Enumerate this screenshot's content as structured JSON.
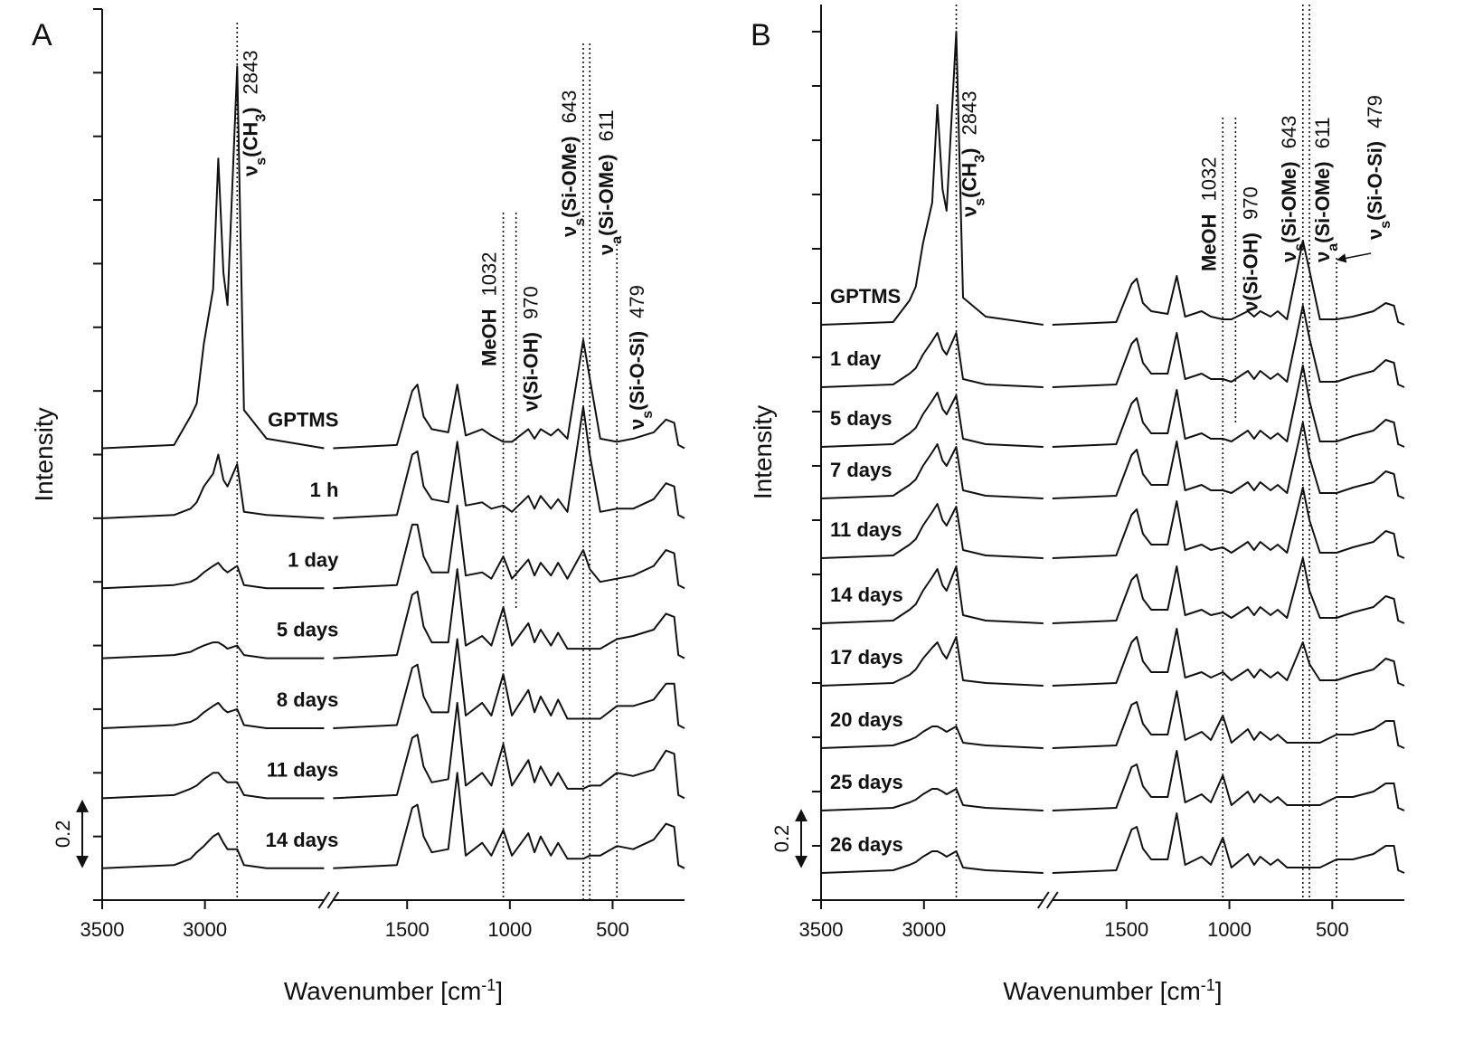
{
  "chart_data": [
    {
      "type": "line",
      "panel_label": "A",
      "ylabel": "Intensity",
      "xlabel": [
        "Wavenumber [cm",
        "-1",
        "]"
      ],
      "color": "#111111",
      "xlim": [
        3500,
        150
      ],
      "xbreak": [
        2420,
        1860
      ],
      "ylim": [
        0,
        2.8
      ],
      "yticks": [
        0,
        0.2,
        0.4,
        0.6,
        0.8,
        1,
        1.2,
        1.4,
        1.6,
        1.8,
        2,
        2.2,
        2.4,
        2.6,
        2.8
      ],
      "ytick_labels": false,
      "xticks": [
        3500,
        3000,
        1500,
        1000,
        500
      ],
      "scale_bar": 0.2,
      "x": [
        3500,
        3150,
        3070,
        3040,
        3005,
        2960,
        2935,
        2910,
        2890,
        2843,
        2810,
        2700,
        2420,
        2100,
        1860,
        1550,
        1475,
        1450,
        1420,
        1380,
        1300,
        1256,
        1215,
        1135,
        1090,
        1032,
        990,
        910,
        880,
        850,
        800,
        765,
        720,
        643,
        611,
        560,
        479,
        400,
        300,
        240,
        200,
        180,
        150
      ],
      "series": [
        {
          "name": "GPTMS",
          "values": [
            1.42,
            1.43,
            1.52,
            1.56,
            1.75,
            1.92,
            2.33,
            1.97,
            1.87,
            2.62,
            1.54,
            1.45,
            1.42,
            null,
            1.42,
            1.43,
            1.6,
            1.62,
            1.52,
            1.48,
            1.47,
            1.62,
            1.46,
            1.48,
            1.46,
            1.44,
            1.44,
            1.48,
            1.45,
            1.48,
            1.46,
            1.48,
            1.45,
            1.76,
            1.64,
            1.45,
            1.44,
            1.45,
            1.47,
            1.51,
            1.5,
            1.43,
            1.42
          ]
        },
        {
          "name": "1 h",
          "values": [
            1.2,
            1.21,
            1.23,
            1.25,
            1.3,
            1.34,
            1.4,
            1.32,
            1.3,
            1.37,
            1.22,
            1.21,
            1.2,
            null,
            1.2,
            1.21,
            1.4,
            1.41,
            1.3,
            1.26,
            1.25,
            1.44,
            1.24,
            1.25,
            1.23,
            1.24,
            1.22,
            1.27,
            1.23,
            1.27,
            1.23,
            1.26,
            1.22,
            1.55,
            1.4,
            1.22,
            1.23,
            1.23,
            1.26,
            1.31,
            1.3,
            1.21,
            1.2
          ]
        },
        {
          "name": "1 day",
          "values": [
            0.98,
            0.99,
            1.0,
            1.01,
            1.03,
            1.05,
            1.06,
            1.04,
            1.03,
            1.05,
            0.99,
            0.98,
            0.98,
            null,
            0.98,
            0.99,
            1.18,
            1.18,
            1.08,
            1.03,
            1.03,
            1.24,
            1.02,
            1.03,
            1.01,
            1.08,
            1.01,
            1.07,
            1.02,
            1.06,
            1.02,
            1.06,
            1.01,
            1.1,
            1.04,
            1.0,
            1.01,
            1.02,
            1.05,
            1.1,
            1.09,
            0.99,
            0.98
          ]
        },
        {
          "name": "5 days",
          "values": [
            0.76,
            0.77,
            0.78,
            0.79,
            0.8,
            0.81,
            0.81,
            0.8,
            0.79,
            0.8,
            0.77,
            0.76,
            0.76,
            null,
            0.76,
            0.77,
            0.96,
            0.97,
            0.86,
            0.81,
            0.81,
            1.04,
            0.8,
            0.83,
            0.8,
            0.92,
            0.8,
            0.87,
            0.81,
            0.85,
            0.8,
            0.84,
            0.79,
            0.79,
            0.79,
            0.79,
            0.82,
            0.83,
            0.85,
            0.9,
            0.89,
            0.77,
            0.76
          ]
        },
        {
          "name": "8 days",
          "values": [
            0.54,
            0.55,
            0.56,
            0.57,
            0.59,
            0.61,
            0.62,
            0.6,
            0.59,
            0.6,
            0.55,
            0.54,
            0.54,
            null,
            0.54,
            0.55,
            0.73,
            0.74,
            0.64,
            0.59,
            0.59,
            0.82,
            0.58,
            0.62,
            0.58,
            0.71,
            0.58,
            0.66,
            0.59,
            0.64,
            0.58,
            0.63,
            0.57,
            0.57,
            0.57,
            0.57,
            0.61,
            0.61,
            0.63,
            0.68,
            0.68,
            0.55,
            0.54
          ]
        },
        {
          "name": "11 days",
          "values": [
            0.32,
            0.33,
            0.35,
            0.36,
            0.38,
            0.4,
            0.4,
            0.38,
            0.37,
            0.37,
            0.33,
            0.32,
            0.32,
            null,
            0.32,
            0.33,
            0.51,
            0.52,
            0.42,
            0.37,
            0.38,
            0.62,
            0.36,
            0.4,
            0.36,
            0.49,
            0.36,
            0.44,
            0.37,
            0.42,
            0.36,
            0.4,
            0.35,
            0.35,
            0.36,
            0.36,
            0.4,
            0.39,
            0.41,
            0.47,
            0.46,
            0.33,
            0.32
          ]
        },
        {
          "name": "14 days",
          "values": [
            0.1,
            0.11,
            0.13,
            0.15,
            0.17,
            0.2,
            0.21,
            0.18,
            0.16,
            0.16,
            0.11,
            0.1,
            0.1,
            null,
            0.1,
            0.11,
            0.29,
            0.3,
            0.2,
            0.15,
            0.16,
            0.4,
            0.14,
            0.18,
            0.14,
            0.22,
            0.14,
            0.21,
            0.15,
            0.2,
            0.14,
            0.18,
            0.13,
            0.13,
            0.14,
            0.14,
            0.17,
            0.16,
            0.19,
            0.24,
            0.23,
            0.11,
            0.1
          ]
        }
      ],
      "annotations": [
        {
          "x": 2843,
          "label": [
            "ν",
            "s",
            "(CH",
            "3",
            ")"
          ]
        },
        {
          "x": 1032,
          "label": [
            "MeOH"
          ]
        },
        {
          "x": 970,
          "label": [
            "ν(Si-OH)"
          ]
        },
        {
          "x": 643,
          "label": [
            "ν",
            "s",
            "(Si-OMe)"
          ]
        },
        {
          "x": 611,
          "label": [
            "ν",
            "a",
            "(Si-OMe)"
          ]
        },
        {
          "x": 479,
          "label": [
            "ν",
            "s",
            "(Si-O-Si)"
          ]
        }
      ]
    },
    {
      "type": "line",
      "panel_label": "B",
      "ylabel": "Intensity",
      "xlabel": [
        "Wavenumber [cm",
        "-1",
        "]"
      ],
      "color": "#111111",
      "xlim": [
        3500,
        150
      ],
      "xbreak": [
        2420,
        1860
      ],
      "ylim": [
        0,
        3.3
      ],
      "yticks": [
        0,
        0.2,
        0.4,
        0.6,
        0.8,
        1,
        1.2,
        1.4,
        1.6,
        1.8,
        2,
        2.2,
        2.4,
        2.6,
        2.8,
        3,
        3.2
      ],
      "ytick_labels": false,
      "xticks": [
        3500,
        3000,
        1500,
        1000,
        500
      ],
      "scale_bar": 0.2,
      "x": [
        3500,
        3150,
        3070,
        3040,
        3005,
        2960,
        2935,
        2910,
        2890,
        2843,
        2810,
        2700,
        2420,
        2100,
        1860,
        1550,
        1475,
        1450,
        1420,
        1380,
        1300,
        1256,
        1215,
        1135,
        1090,
        1032,
        990,
        910,
        880,
        850,
        800,
        765,
        720,
        643,
        611,
        560,
        479,
        400,
        300,
        240,
        200,
        180,
        150
      ],
      "series": [
        {
          "name": "GPTMS",
          "values": [
            2.12,
            2.13,
            2.21,
            2.26,
            2.42,
            2.57,
            2.93,
            2.62,
            2.54,
            3.2,
            2.22,
            2.15,
            2.12,
            null,
            2.12,
            2.13,
            2.27,
            2.29,
            2.2,
            2.17,
            2.16,
            2.3,
            2.15,
            2.17,
            2.15,
            2.14,
            2.14,
            2.17,
            2.15,
            2.17,
            2.15,
            2.17,
            2.14,
            2.43,
            2.32,
            2.14,
            2.14,
            2.15,
            2.17,
            2.2,
            2.19,
            2.13,
            2.12
          ]
        },
        {
          "name": "1 day",
          "values": [
            1.89,
            1.9,
            1.94,
            1.96,
            2.01,
            2.06,
            2.09,
            2.03,
            2.01,
            2.09,
            1.92,
            1.9,
            1.89,
            null,
            1.89,
            1.9,
            2.05,
            2.07,
            1.98,
            1.94,
            1.94,
            2.09,
            1.92,
            1.94,
            1.92,
            1.92,
            1.91,
            1.95,
            1.92,
            1.95,
            1.92,
            1.94,
            1.91,
            2.19,
            2.07,
            1.91,
            1.91,
            1.93,
            1.95,
            1.99,
            1.98,
            1.9,
            1.89
          ]
        },
        {
          "name": "5 days",
          "values": [
            1.67,
            1.68,
            1.72,
            1.74,
            1.79,
            1.84,
            1.87,
            1.81,
            1.79,
            1.86,
            1.7,
            1.68,
            1.67,
            null,
            1.67,
            1.68,
            1.83,
            1.85,
            1.76,
            1.72,
            1.72,
            1.88,
            1.7,
            1.72,
            1.7,
            1.7,
            1.69,
            1.73,
            1.7,
            1.73,
            1.7,
            1.72,
            1.69,
            1.97,
            1.84,
            1.69,
            1.69,
            1.71,
            1.73,
            1.77,
            1.76,
            1.68,
            1.67
          ]
        },
        {
          "name": "7 days",
          "values": [
            1.48,
            1.49,
            1.53,
            1.55,
            1.6,
            1.65,
            1.68,
            1.62,
            1.6,
            1.67,
            1.51,
            1.49,
            1.48,
            null,
            1.48,
            1.49,
            1.64,
            1.66,
            1.57,
            1.53,
            1.53,
            1.69,
            1.51,
            1.53,
            1.51,
            1.51,
            1.5,
            1.54,
            1.51,
            1.54,
            1.51,
            1.53,
            1.5,
            1.76,
            1.63,
            1.5,
            1.5,
            1.52,
            1.54,
            1.58,
            1.57,
            1.49,
            1.48
          ]
        },
        {
          "name": "11 days",
          "values": [
            1.26,
            1.27,
            1.31,
            1.33,
            1.38,
            1.43,
            1.46,
            1.4,
            1.38,
            1.45,
            1.29,
            1.27,
            1.26,
            null,
            1.26,
            1.27,
            1.42,
            1.44,
            1.35,
            1.31,
            1.31,
            1.47,
            1.29,
            1.31,
            1.29,
            1.3,
            1.28,
            1.32,
            1.29,
            1.32,
            1.29,
            1.31,
            1.28,
            1.52,
            1.4,
            1.28,
            1.28,
            1.3,
            1.32,
            1.36,
            1.35,
            1.27,
            1.26
          ]
        },
        {
          "name": "14 days",
          "values": [
            1.02,
            1.03,
            1.07,
            1.09,
            1.14,
            1.19,
            1.22,
            1.16,
            1.14,
            1.23,
            1.05,
            1.03,
            1.02,
            null,
            1.02,
            1.03,
            1.18,
            1.2,
            1.11,
            1.07,
            1.07,
            1.23,
            1.05,
            1.07,
            1.05,
            1.06,
            1.04,
            1.08,
            1.05,
            1.08,
            1.05,
            1.07,
            1.04,
            1.26,
            1.14,
            1.04,
            1.04,
            1.06,
            1.08,
            1.12,
            1.11,
            1.03,
            1.02
          ]
        },
        {
          "name": "17 days",
          "values": [
            0.79,
            0.8,
            0.83,
            0.85,
            0.89,
            0.93,
            0.95,
            0.91,
            0.89,
            0.97,
            0.81,
            0.8,
            0.79,
            null,
            0.79,
            0.8,
            0.95,
            0.97,
            0.88,
            0.84,
            0.84,
            1.0,
            0.82,
            0.84,
            0.82,
            0.84,
            0.81,
            0.85,
            0.82,
            0.85,
            0.82,
            0.84,
            0.81,
            0.95,
            0.87,
            0.81,
            0.81,
            0.83,
            0.85,
            0.89,
            0.88,
            0.8,
            0.79
          ]
        },
        {
          "name": "20 days",
          "values": [
            0.56,
            0.57,
            0.59,
            0.6,
            0.62,
            0.64,
            0.64,
            0.63,
            0.62,
            0.64,
            0.58,
            0.57,
            0.56,
            null,
            0.56,
            0.57,
            0.72,
            0.73,
            0.65,
            0.61,
            0.61,
            0.77,
            0.59,
            0.62,
            0.59,
            0.68,
            0.58,
            0.63,
            0.59,
            0.62,
            0.59,
            0.61,
            0.58,
            0.58,
            0.58,
            0.58,
            0.61,
            0.61,
            0.63,
            0.66,
            0.66,
            0.57,
            0.56
          ]
        },
        {
          "name": "25 days",
          "values": [
            0.33,
            0.34,
            0.36,
            0.37,
            0.39,
            0.41,
            0.41,
            0.4,
            0.39,
            0.41,
            0.35,
            0.34,
            0.33,
            null,
            0.33,
            0.34,
            0.49,
            0.5,
            0.42,
            0.38,
            0.38,
            0.55,
            0.36,
            0.39,
            0.36,
            0.46,
            0.35,
            0.4,
            0.36,
            0.39,
            0.36,
            0.38,
            0.35,
            0.35,
            0.35,
            0.35,
            0.38,
            0.38,
            0.4,
            0.43,
            0.43,
            0.34,
            0.33
          ]
        },
        {
          "name": "26 days",
          "values": [
            0.1,
            0.11,
            0.13,
            0.14,
            0.16,
            0.18,
            0.18,
            0.17,
            0.16,
            0.18,
            0.12,
            0.11,
            0.1,
            null,
            0.1,
            0.11,
            0.26,
            0.27,
            0.19,
            0.15,
            0.15,
            0.32,
            0.13,
            0.16,
            0.13,
            0.23,
            0.12,
            0.17,
            0.13,
            0.16,
            0.13,
            0.15,
            0.12,
            0.12,
            0.12,
            0.12,
            0.15,
            0.15,
            0.17,
            0.2,
            0.2,
            0.11,
            0.1
          ]
        }
      ],
      "annotations": [
        {
          "x": 2843,
          "label": [
            "ν",
            "s",
            "(CH",
            "3",
            ")"
          ]
        },
        {
          "x": 1032,
          "label": [
            "MeOH"
          ]
        },
        {
          "x": 970,
          "label": [
            "ν(Si-OH)"
          ]
        },
        {
          "x": 643,
          "label": [
            "ν",
            "s",
            "(Si-OMe)"
          ]
        },
        {
          "x": 611,
          "label": [
            "ν",
            "a",
            "(Si-OMe)"
          ]
        },
        {
          "x": 479,
          "label": [
            "ν",
            "s",
            "(Si-O-Si)"
          ]
        }
      ]
    }
  ]
}
